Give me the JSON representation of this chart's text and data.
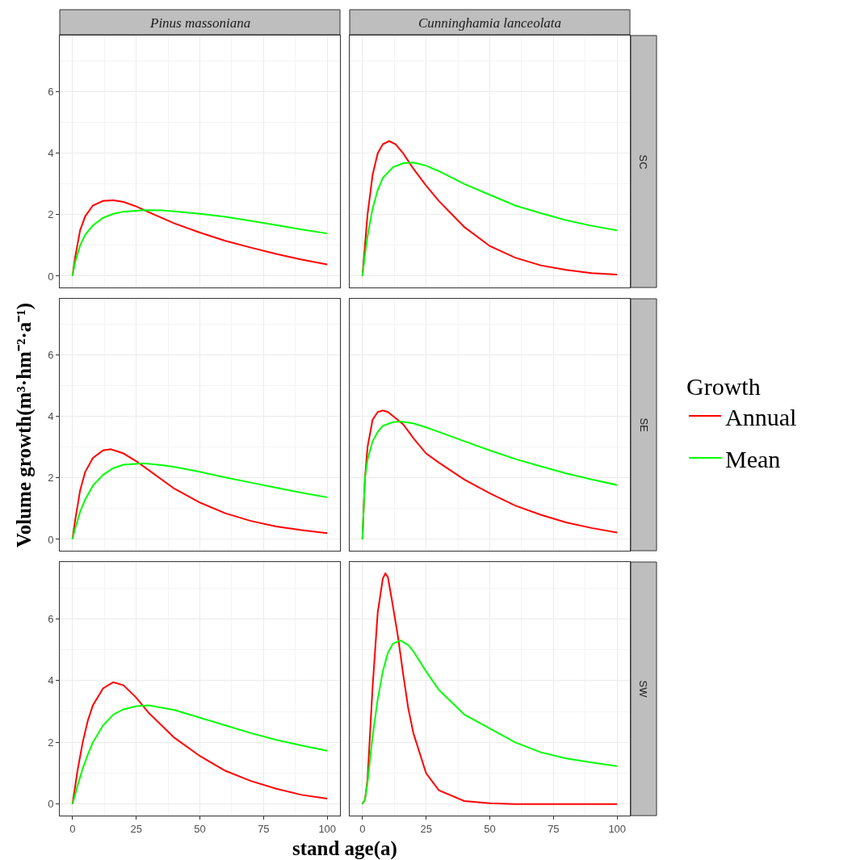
{
  "chart_data": [
    {
      "type": "line",
      "title": "Pinus massoniana",
      "xlim": [
        -5,
        105
      ],
      "ylim": [
        -0.37,
        7.84
      ],
      "xticks": [
        0,
        25,
        50,
        75,
        100
      ],
      "yticks": [
        0,
        2,
        4,
        6
      ],
      "grid": true,
      "tick_labels": "y",
      "legend": "right",
      "legend_title": "Growth",
      "series": [
        {
          "name": "Annual",
          "color": "#ff0000",
          "x": [
            0,
            1,
            3,
            5,
            8,
            12,
            16,
            20,
            25,
            30,
            40,
            50,
            60,
            70,
            80,
            90,
            100
          ],
          "values": [
            0,
            0.6,
            1.5,
            1.95,
            2.3,
            2.45,
            2.47,
            2.42,
            2.27,
            2.08,
            1.72,
            1.42,
            1.15,
            0.93,
            0.72,
            0.54,
            0.38
          ]
        },
        {
          "name": "Mean",
          "color": "#00ff00",
          "x": [
            0,
            1,
            3,
            5,
            8,
            12,
            16,
            20,
            28,
            35,
            40,
            50,
            60,
            70,
            80,
            90,
            100
          ],
          "values": [
            0,
            0.45,
            1.0,
            1.35,
            1.65,
            1.9,
            2.03,
            2.1,
            2.15,
            2.14,
            2.11,
            2.03,
            1.93,
            1.8,
            1.66,
            1.52,
            1.39
          ]
        }
      ]
    },
    {
      "type": "line",
      "title": "Cunninghamia lanceolata",
      "annotations": [
        "SC"
      ],
      "xlim": [
        -5,
        105
      ],
      "ylim": [
        -0.37,
        7.84
      ],
      "xticks": [
        0,
        25,
        50,
        75,
        100
      ],
      "yticks": [
        0,
        2,
        4,
        6
      ],
      "grid": true,
      "tick_labels": false,
      "series": [
        {
          "color": "#ff0000",
          "x": [
            0,
            1,
            2,
            4,
            6,
            8,
            10.5,
            13,
            16,
            20,
            25,
            30,
            40,
            50,
            60,
            70,
            80,
            90,
            100
          ],
          "values": [
            0,
            1.0,
            2.0,
            3.3,
            4.0,
            4.3,
            4.4,
            4.3,
            4.0,
            3.5,
            2.95,
            2.45,
            1.6,
            0.98,
            0.6,
            0.35,
            0.2,
            0.1,
            0.05
          ]
        },
        {
          "color": "#00ff00",
          "x": [
            0,
            1,
            2,
            4,
            6,
            8,
            12,
            16,
            20,
            25,
            30,
            40,
            50,
            60,
            70,
            80,
            90,
            100
          ],
          "values": [
            0,
            0.7,
            1.3,
            2.2,
            2.8,
            3.2,
            3.55,
            3.68,
            3.7,
            3.6,
            3.42,
            3.0,
            2.65,
            2.3,
            2.05,
            1.82,
            1.64,
            1.49
          ]
        }
      ]
    },
    {
      "type": "line",
      "ylabel": "Volume growth(m³·hm⁻²·a⁻¹)",
      "xlim": [
        -5,
        105
      ],
      "ylim": [
        -0.37,
        7.84
      ],
      "xticks": [
        0,
        25,
        50,
        75,
        100
      ],
      "yticks": [
        0,
        2,
        4,
        6
      ],
      "grid": true,
      "tick_labels": "y",
      "series": [
        {
          "color": "#ff0000",
          "x": [
            0,
            1,
            3,
            5,
            8,
            12,
            15,
            20,
            25,
            30,
            40,
            50,
            60,
            70,
            80,
            90,
            100
          ],
          "values": [
            0,
            0.6,
            1.6,
            2.2,
            2.65,
            2.9,
            2.94,
            2.8,
            2.55,
            2.25,
            1.65,
            1.2,
            0.85,
            0.6,
            0.42,
            0.3,
            0.2
          ]
        },
        {
          "color": "#00ff00",
          "x": [
            0,
            1,
            3,
            5,
            8,
            12,
            16,
            20,
            28,
            35,
            40,
            50,
            60,
            70,
            80,
            90,
            100
          ],
          "values": [
            0,
            0.35,
            0.9,
            1.3,
            1.75,
            2.1,
            2.32,
            2.43,
            2.48,
            2.42,
            2.36,
            2.2,
            2.02,
            1.85,
            1.68,
            1.52,
            1.37
          ]
        }
      ]
    },
    {
      "type": "line",
      "annotations": [
        "SE"
      ],
      "xlim": [
        -5,
        105
      ],
      "ylim": [
        -0.37,
        7.84
      ],
      "xticks": [
        0,
        25,
        50,
        75,
        100
      ],
      "yticks": [
        0,
        2,
        4,
        6
      ],
      "grid": true,
      "tick_labels": false,
      "series": [
        {
          "color": "#ff0000",
          "x": [
            0,
            1,
            2,
            4,
            6,
            8,
            10,
            13,
            16,
            20,
            25,
            30,
            40,
            50,
            60,
            70,
            80,
            90,
            100
          ],
          "values": [
            0,
            2.0,
            3.0,
            3.9,
            4.15,
            4.2,
            4.15,
            3.95,
            3.75,
            3.3,
            2.8,
            2.5,
            1.95,
            1.5,
            1.1,
            0.8,
            0.55,
            0.37,
            0.22
          ]
        },
        {
          "color": "#00ff00",
          "x": [
            0,
            1,
            2,
            4,
            6,
            8,
            12,
            15,
            20,
            25,
            30,
            40,
            50,
            60,
            70,
            80,
            90,
            100
          ],
          "values": [
            0,
            2.0,
            2.6,
            3.2,
            3.5,
            3.7,
            3.82,
            3.84,
            3.78,
            3.65,
            3.5,
            3.2,
            2.9,
            2.62,
            2.38,
            2.15,
            1.95,
            1.77
          ]
        }
      ]
    },
    {
      "type": "line",
      "xlabel": "stand age(a)",
      "xlim": [
        -5,
        105
      ],
      "ylim": [
        -0.37,
        7.84
      ],
      "xticks": [
        0,
        25,
        50,
        75,
        100
      ],
      "yticks": [
        0,
        2,
        4,
        6
      ],
      "grid": true,
      "series": [
        {
          "color": "#ff0000",
          "x": [
            0,
            2,
            4,
            6,
            8,
            12,
            16,
            20,
            25,
            30,
            40,
            50,
            60,
            70,
            80,
            90,
            100
          ],
          "values": [
            0,
            1.1,
            2.0,
            2.7,
            3.2,
            3.75,
            3.95,
            3.85,
            3.45,
            2.95,
            2.15,
            1.56,
            1.08,
            0.75,
            0.5,
            0.3,
            0.18
          ]
        },
        {
          "color": "#00ff00",
          "x": [
            0,
            2,
            4,
            6,
            8,
            12,
            16,
            20,
            25,
            30,
            40,
            50,
            60,
            70,
            80,
            90,
            100
          ],
          "values": [
            0,
            0.6,
            1.15,
            1.6,
            2.0,
            2.55,
            2.9,
            3.07,
            3.17,
            3.2,
            3.05,
            2.8,
            2.55,
            2.3,
            2.08,
            1.9,
            1.73
          ]
        }
      ]
    },
    {
      "type": "line",
      "annotations": [
        "SW"
      ],
      "xlim": [
        -5,
        105
      ],
      "ylim": [
        -0.37,
        7.84
      ],
      "xticks": [
        0,
        25,
        50,
        75,
        100
      ],
      "yticks": [
        0,
        2,
        4,
        6
      ],
      "grid": true,
      "tick_labels": "x",
      "series": [
        {
          "color": "#ff0000",
          "x": [
            0,
            1,
            2,
            4,
            6,
            8,
            9,
            10,
            12,
            14,
            16,
            18,
            20,
            25,
            30,
            40,
            50,
            60,
            70,
            80,
            90,
            100
          ],
          "values": [
            0,
            0.15,
            0.8,
            3.8,
            6.2,
            7.3,
            7.47,
            7.35,
            6.4,
            5.4,
            4.2,
            3.1,
            2.3,
            1.0,
            0.45,
            0.1,
            0.03,
            0,
            0,
            0,
            0,
            0
          ]
        },
        {
          "color": "#00ff00",
          "x": [
            0,
            1,
            2,
            4,
            6,
            8,
            10,
            12,
            15,
            18,
            20,
            25,
            30,
            40,
            50,
            60,
            70,
            80,
            90,
            100
          ],
          "values": [
            0,
            0.15,
            0.7,
            2.2,
            3.4,
            4.3,
            4.9,
            5.2,
            5.3,
            5.15,
            4.95,
            4.3,
            3.7,
            2.9,
            2.45,
            2.0,
            1.68,
            1.48,
            1.35,
            1.23
          ]
        }
      ]
    }
  ]
}
